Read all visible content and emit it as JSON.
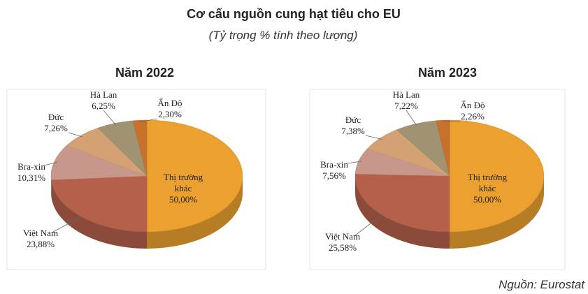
{
  "title": "Cơ cấu nguồn cung hạt tiêu cho EU",
  "subtitle": "(Tỷ trọng % tính theo lượng)",
  "source": "Nguồn: Eurostat",
  "chart_data": [
    {
      "type": "pie",
      "title": "Năm 2022",
      "categories": [
        "Thị trường khác",
        "Việt Nam",
        "Bra-xin",
        "Đức",
        "Hà Lan",
        "Ấn Độ"
      ],
      "values": [
        50.0,
        23.88,
        10.31,
        7.26,
        6.25,
        2.3
      ],
      "value_labels": [
        "50,00%",
        "23,88%",
        "10,31%",
        "7,26%",
        "6,25%",
        "2,30%"
      ],
      "colors": [
        "#EBA02F",
        "#B4604A",
        "#C8978B",
        "#D3A173",
        "#9F9372",
        "#C8712B"
      ]
    },
    {
      "type": "pie",
      "title": "Năm 2023",
      "categories": [
        "Thị trường khác",
        "Việt Nam",
        "Bra-xin",
        "Đức",
        "Hà Lan",
        "Ấn Độ"
      ],
      "values": [
        50.0,
        25.58,
        7.56,
        7.38,
        7.22,
        2.26
      ],
      "value_labels": [
        "50,00%",
        "25,58%",
        "7,56%",
        "7,38%",
        "7,22%",
        "2,26%"
      ],
      "colors": [
        "#EBA02F",
        "#B4604A",
        "#C8978B",
        "#D3A173",
        "#9F9372",
        "#C8712B"
      ]
    }
  ]
}
